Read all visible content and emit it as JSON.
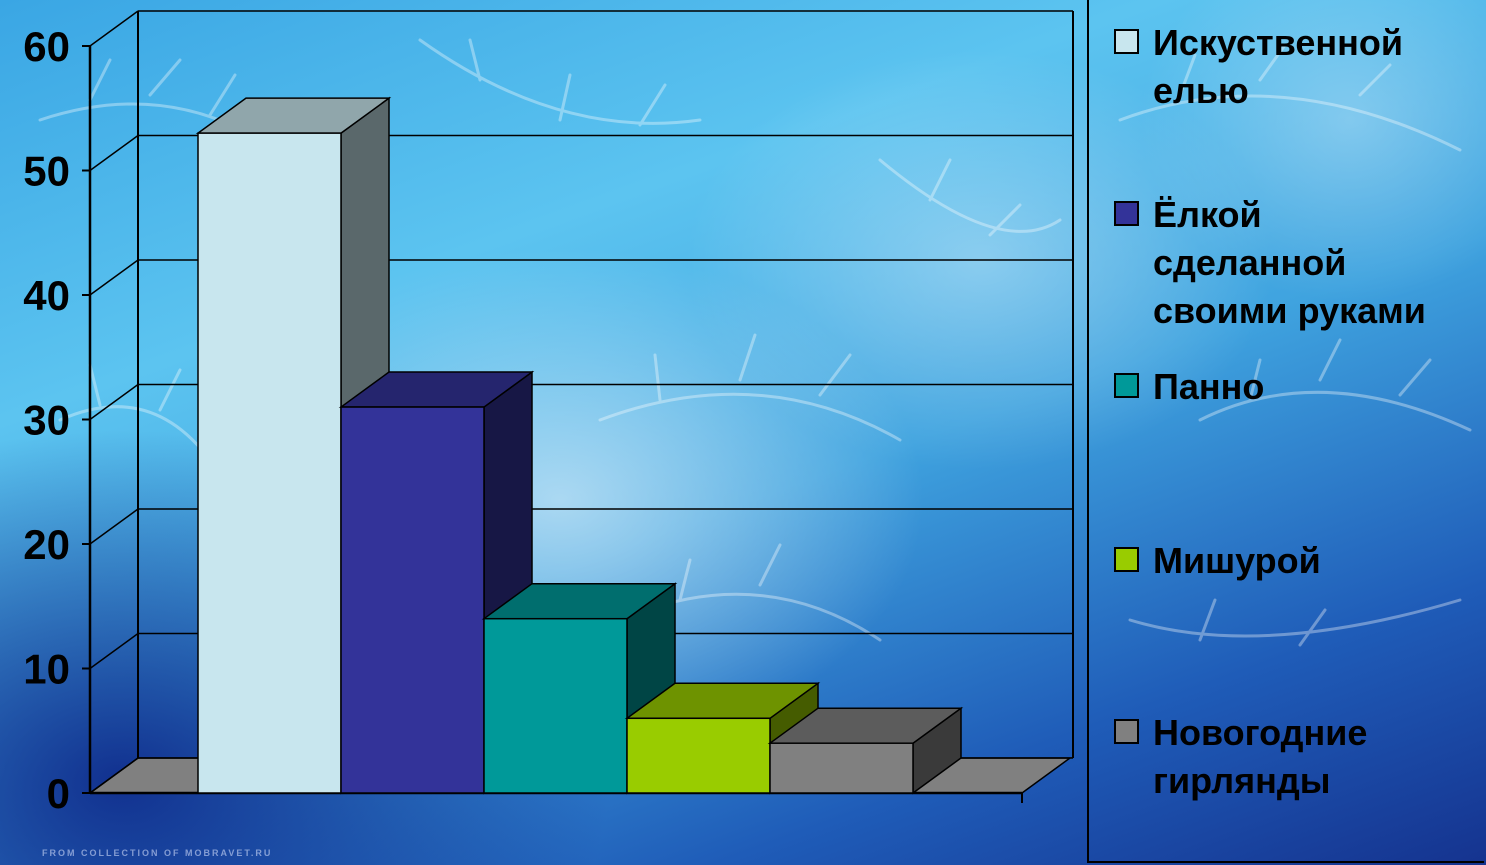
{
  "chart_data": {
    "type": "bar",
    "categories": [
      "Искуственной елью",
      "Ёлкой сделанной своими руками",
      "Панно",
      "Мишурой",
      "Новогодние гирлянды"
    ],
    "values": [
      53,
      31,
      14,
      6,
      4
    ],
    "colors": [
      "#c8e6ee",
      "#333399",
      "#009999",
      "#99cc00",
      "#808080"
    ],
    "ylim": [
      0,
      60
    ],
    "yticks": [
      0,
      10,
      20,
      30,
      40,
      50,
      60
    ],
    "grid": true,
    "legend": "right",
    "style": "3d-column",
    "legend_items": [
      {
        "lines": [
          "Искуственной",
          "елью"
        ],
        "color": "#c8e6ee"
      },
      {
        "lines": [
          "Ёлкой",
          "сделанной",
          "своими руками"
        ],
        "color": "#333399"
      },
      {
        "lines": [
          "Панно"
        ],
        "color": "#009999"
      },
      {
        "lines": [
          "Мишурой"
        ],
        "color": "#99cc00"
      },
      {
        "lines": [
          "Новогодние",
          "гирлянды"
        ],
        "color": "#808080"
      }
    ]
  },
  "watermark": "FROM COLLECTION OF MOBRAVET.RU"
}
